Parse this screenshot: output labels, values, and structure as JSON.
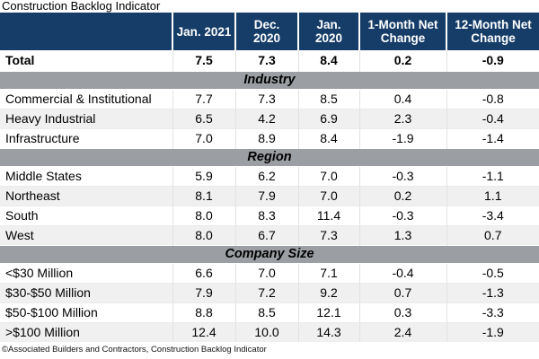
{
  "title": "Construction Backlog Indicator",
  "footer": "©Associated Builders and Contractors, Construction Backlog Indicator",
  "colors": {
    "header_bg": "#163D68",
    "header_text": "#FFFFFF",
    "section_bg": "#9B9EA3",
    "alt_row_bg": "#F0F0F0",
    "grid_line": "#E2E2E2"
  },
  "table": {
    "columns": [
      "Jan. 2021",
      "Dec. 2020",
      "Jan. 2020",
      "1-Month Net Change",
      "12-Month Net Change"
    ],
    "total": {
      "label": "Total",
      "values": [
        "7.5",
        "7.3",
        "8.4",
        "0.2",
        "-0.9"
      ]
    },
    "sections": [
      {
        "name": "Industry",
        "rows": [
          {
            "label": "Commercial & Institutional",
            "values": [
              "7.7",
              "7.3",
              "8.5",
              "0.4",
              "-0.8"
            ]
          },
          {
            "label": "Heavy Industrial",
            "values": [
              "6.5",
              "4.2",
              "6.9",
              "2.3",
              "-0.4"
            ]
          },
          {
            "label": "Infrastructure",
            "values": [
              "7.0",
              "8.9",
              "8.4",
              "-1.9",
              "-1.4"
            ]
          }
        ]
      },
      {
        "name": "Region",
        "rows": [
          {
            "label": "Middle States",
            "values": [
              "5.9",
              "6.2",
              "7.0",
              "-0.3",
              "-1.1"
            ]
          },
          {
            "label": "Northeast",
            "values": [
              "8.1",
              "7.9",
              "7.0",
              "0.2",
              "1.1"
            ]
          },
          {
            "label": "South",
            "values": [
              "8.0",
              "8.3",
              "11.4",
              "-0.3",
              "-3.4"
            ]
          },
          {
            "label": "West",
            "values": [
              "8.0",
              "6.7",
              "7.3",
              "1.3",
              "0.7"
            ]
          }
        ]
      },
      {
        "name": "Company Size",
        "rows": [
          {
            "label": "<$30 Million",
            "values": [
              "6.6",
              "7.0",
              "7.1",
              "-0.4",
              "-0.5"
            ]
          },
          {
            "label": "$30-$50 Million",
            "values": [
              "7.9",
              "7.2",
              "9.2",
              "0.7",
              "-1.3"
            ]
          },
          {
            "label": "$50-$100 Million",
            "values": [
              "8.8",
              "8.5",
              "12.1",
              "0.3",
              "-3.3"
            ]
          },
          {
            "label": ">$100 Million",
            "values": [
              "12.4",
              "10.0",
              "14.3",
              "2.4",
              "-1.9"
            ]
          }
        ]
      }
    ]
  },
  "chart_data": {
    "type": "table",
    "title": "Construction Backlog Indicator",
    "columns": [
      "Jan. 2021",
      "Dec. 2020",
      "Jan. 2020",
      "1-Month Net Change",
      "12-Month Net Change"
    ],
    "rows": [
      {
        "group": null,
        "label": "Total",
        "values": [
          7.5,
          7.3,
          8.4,
          0.2,
          -0.9
        ]
      },
      {
        "group": "Industry",
        "label": "Commercial & Institutional",
        "values": [
          7.7,
          7.3,
          8.5,
          0.4,
          -0.8
        ]
      },
      {
        "group": "Industry",
        "label": "Heavy Industrial",
        "values": [
          6.5,
          4.2,
          6.9,
          2.3,
          -0.4
        ]
      },
      {
        "group": "Industry",
        "label": "Infrastructure",
        "values": [
          7.0,
          8.9,
          8.4,
          -1.9,
          -1.4
        ]
      },
      {
        "group": "Region",
        "label": "Middle States",
        "values": [
          5.9,
          6.2,
          7.0,
          -0.3,
          -1.1
        ]
      },
      {
        "group": "Region",
        "label": "Northeast",
        "values": [
          8.1,
          7.9,
          7.0,
          0.2,
          1.1
        ]
      },
      {
        "group": "Region",
        "label": "South",
        "values": [
          8.0,
          8.3,
          11.4,
          -0.3,
          -3.4
        ]
      },
      {
        "group": "Region",
        "label": "West",
        "values": [
          8.0,
          6.7,
          7.3,
          1.3,
          0.7
        ]
      },
      {
        "group": "Company Size",
        "label": "<$30 Million",
        "values": [
          6.6,
          7.0,
          7.1,
          -0.4,
          -0.5
        ]
      },
      {
        "group": "Company Size",
        "label": "$30-$50 Million",
        "values": [
          7.9,
          7.2,
          9.2,
          0.7,
          -1.3
        ]
      },
      {
        "group": "Company Size",
        "label": "$50-$100 Million",
        "values": [
          8.8,
          8.5,
          12.1,
          0.3,
          -3.3
        ]
      },
      {
        "group": "Company Size",
        "label": ">$100 Million",
        "values": [
          12.4,
          10.0,
          14.3,
          2.4,
          -1.9
        ]
      }
    ],
    "source_note": "©Associated Builders and Contractors, Construction Backlog Indicator"
  }
}
